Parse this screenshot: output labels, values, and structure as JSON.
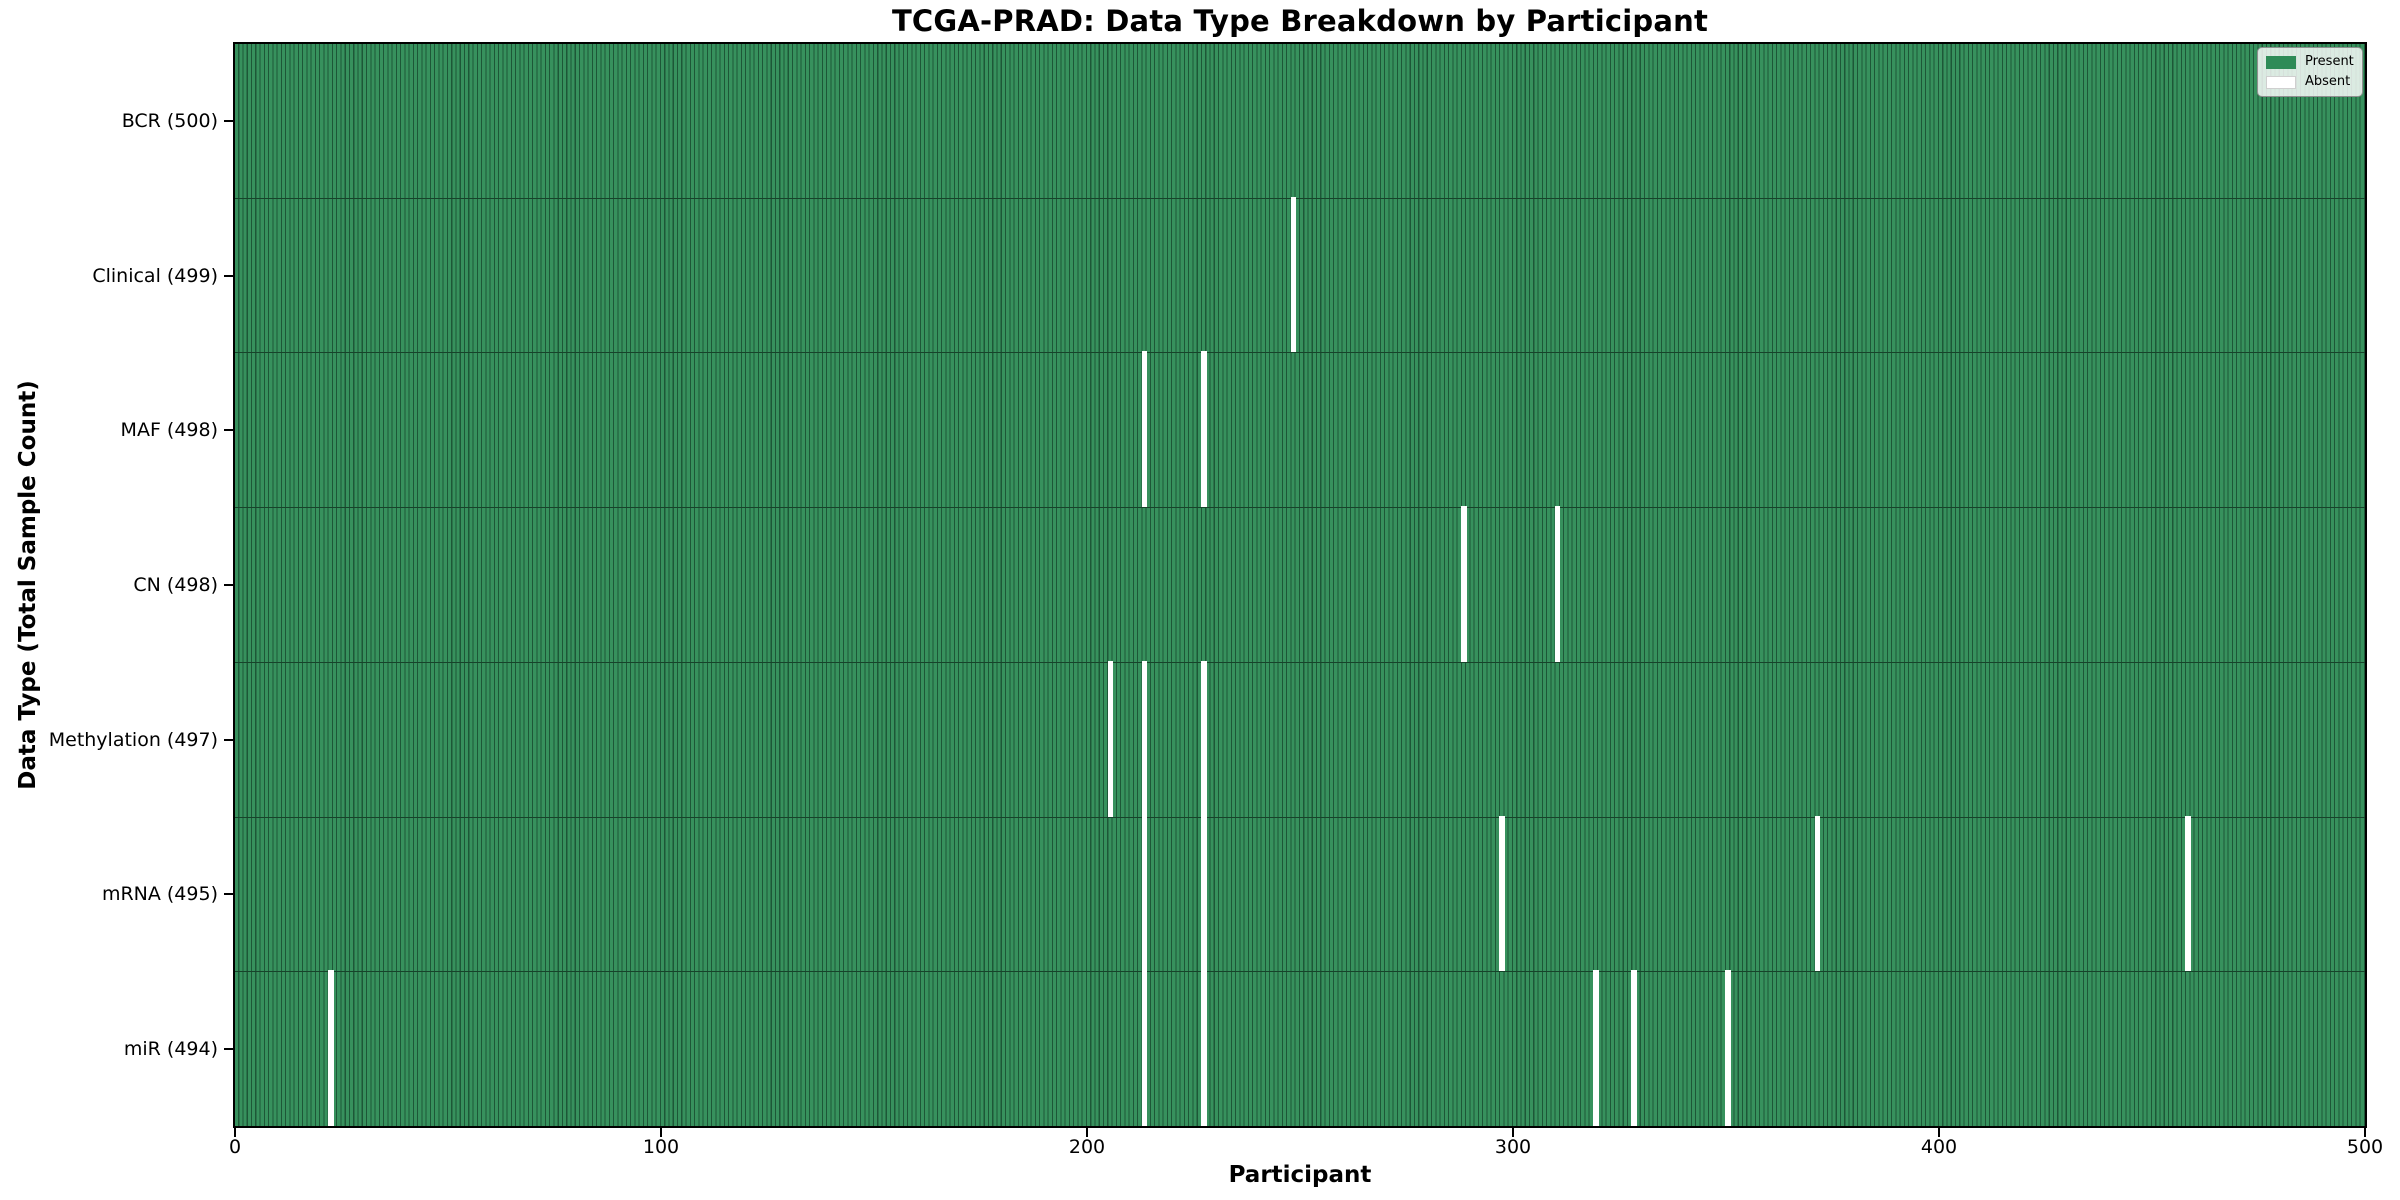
{
  "title": "TCGA-PRAD: Data Type Breakdown by Participant",
  "axes": {
    "xlabel": "Participant",
    "ylabel": "Data Type (Total Sample Count)",
    "x_ticks": [
      "0",
      "100",
      "200",
      "300",
      "400",
      "500"
    ]
  },
  "legend": {
    "entries": [
      {
        "label": "Present",
        "color": "#2e8b57"
      },
      {
        "label": "Absent",
        "color": "#ffffff"
      }
    ]
  },
  "colors": {
    "bar_face": "#37915d",
    "bar_edge": "#1d5737",
    "absent": "#ffffff",
    "row_separator": "#17432a",
    "spine": "#000000"
  },
  "chart_data": {
    "type": "heatmap",
    "title": "TCGA-PRAD: Data Type Breakdown by Participant",
    "xlabel": "Participant",
    "ylabel": "Data Type (Total Sample Count)",
    "x_range": [
      0,
      500
    ],
    "x_tick_values": [
      0,
      100,
      200,
      300,
      400,
      500
    ],
    "total_participants": 500,
    "grid": false,
    "legend_position": "upper right",
    "legend_entries": [
      "Present",
      "Absent"
    ],
    "rows": [
      {
        "label": "BCR (500)",
        "data_type": "BCR",
        "present_count": 500,
        "absent_participants": []
      },
      {
        "label": "Clinical (499)",
        "data_type": "Clinical",
        "present_count": 499,
        "absent_participants": [
          248
        ]
      },
      {
        "label": "MAF (498)",
        "data_type": "MAF",
        "present_count": 498,
        "absent_participants": [
          213,
          227
        ]
      },
      {
        "label": "CN (498)",
        "data_type": "CN",
        "present_count": 498,
        "absent_participants": [
          288,
          310
        ]
      },
      {
        "label": "Methylation (497)",
        "data_type": "Methylation",
        "present_count": 497,
        "absent_participants": [
          205,
          213,
          227
        ]
      },
      {
        "label": "mRNA (495)",
        "data_type": "mRNA",
        "present_count": 495,
        "absent_participants": [
          213,
          227,
          297,
          371,
          458
        ]
      },
      {
        "label": "miR (494)",
        "data_type": "miR",
        "present_count": 494,
        "absent_participants": [
          22,
          213,
          227,
          319,
          328,
          350
        ]
      }
    ]
  }
}
